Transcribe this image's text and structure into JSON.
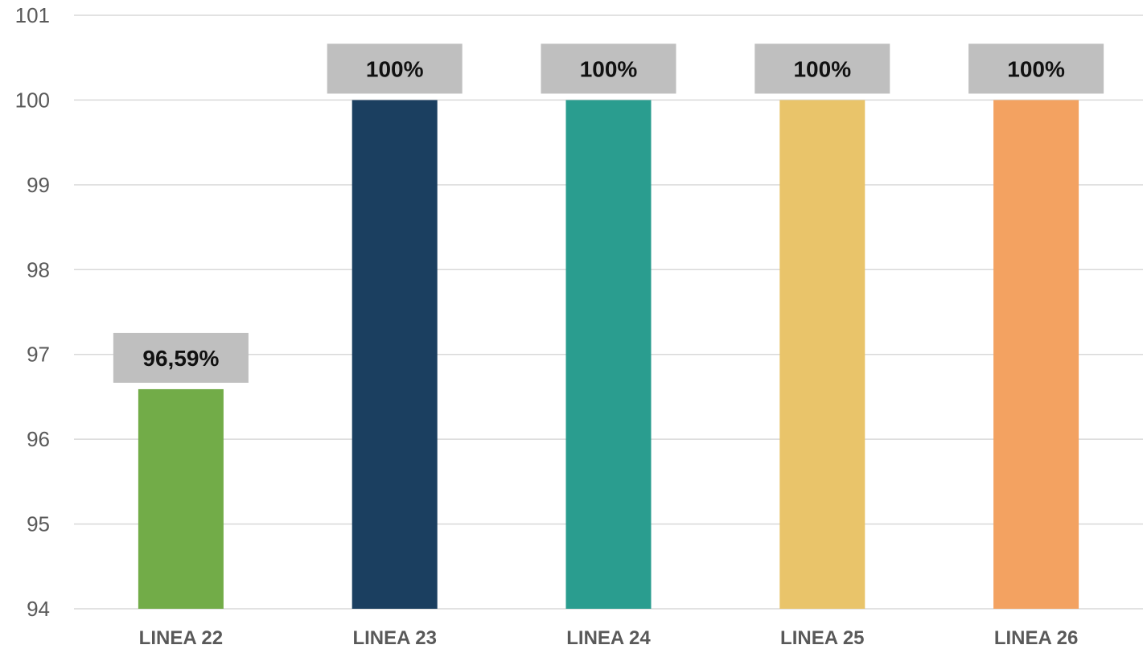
{
  "chart_data": {
    "type": "bar",
    "categories": [
      "LINEA 22",
      "LINEA 23",
      "LINEA 24",
      "LINEA 25",
      "LINEA 26"
    ],
    "values": [
      96.59,
      100,
      100,
      100,
      100
    ],
    "data_labels": [
      "96,59%",
      "100%",
      "100%",
      "100%",
      "100%"
    ],
    "colors": [
      "#72AC48",
      "#1B3F60",
      "#2A9D8F",
      "#E9C46A",
      "#F3A261"
    ],
    "label_box_color": "#BFBFBF",
    "ylim": [
      94,
      101
    ],
    "yticks": [
      94,
      95,
      96,
      97,
      98,
      99,
      100,
      101
    ],
    "grid": true,
    "legend": "none",
    "title": "",
    "xlabel": "",
    "ylabel": ""
  }
}
